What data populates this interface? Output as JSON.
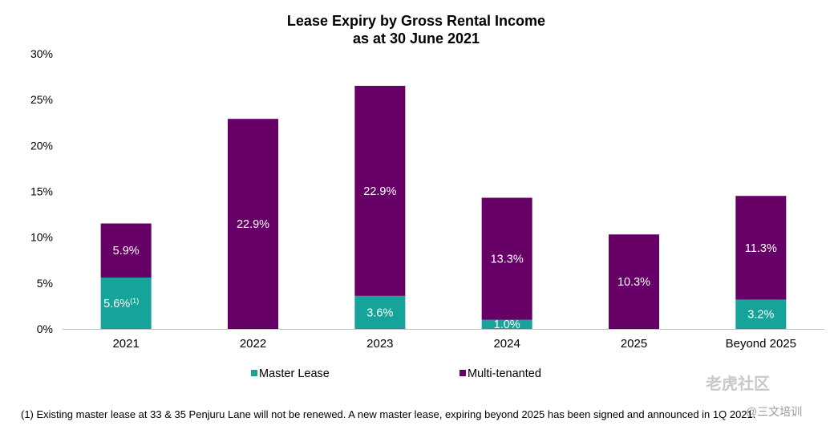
{
  "chart_data": {
    "type": "bar",
    "stacked": true,
    "title": "Lease Expiry by Gross Rental Income",
    "subtitle": "as at 30 June 2021",
    "categories": [
      "2021",
      "2022",
      "2023",
      "2024",
      "2025",
      "Beyond 2025"
    ],
    "series": [
      {
        "name": "Master Lease",
        "color": "#16a39a",
        "values": [
          5.6,
          0,
          3.6,
          1.0,
          0,
          3.2
        ],
        "labels": [
          "5.6%",
          "",
          "3.6%",
          "1.0%",
          "",
          "3.2%"
        ]
      },
      {
        "name": "Multi-tenanted",
        "color": "#660066",
        "values": [
          5.9,
          22.9,
          22.9,
          13.3,
          10.3,
          11.3
        ],
        "labels": [
          "5.9%",
          "22.9%",
          "22.9%",
          "13.3%",
          "10.3%",
          "11.3%"
        ]
      }
    ],
    "ylim": [
      0,
      30
    ],
    "yticks": [
      "0%",
      "5%",
      "10%",
      "15%",
      "20%",
      "25%",
      "30%"
    ],
    "ytick_values": [
      0,
      5,
      10,
      15,
      20,
      25,
      30
    ],
    "grid": false,
    "legend_position": "bottom",
    "annotation_marker": "(1)",
    "annotation_target": {
      "series": 0,
      "category": 0
    }
  },
  "footnote": "(1)  Existing master lease at 33 & 35 Penjuru Lane will not be renewed. A new master lease, expiring beyond 2025 has been signed and announced in 1Q 2021.",
  "watermark": {
    "text": "老虎社区",
    "subtext": "@三文培训"
  }
}
